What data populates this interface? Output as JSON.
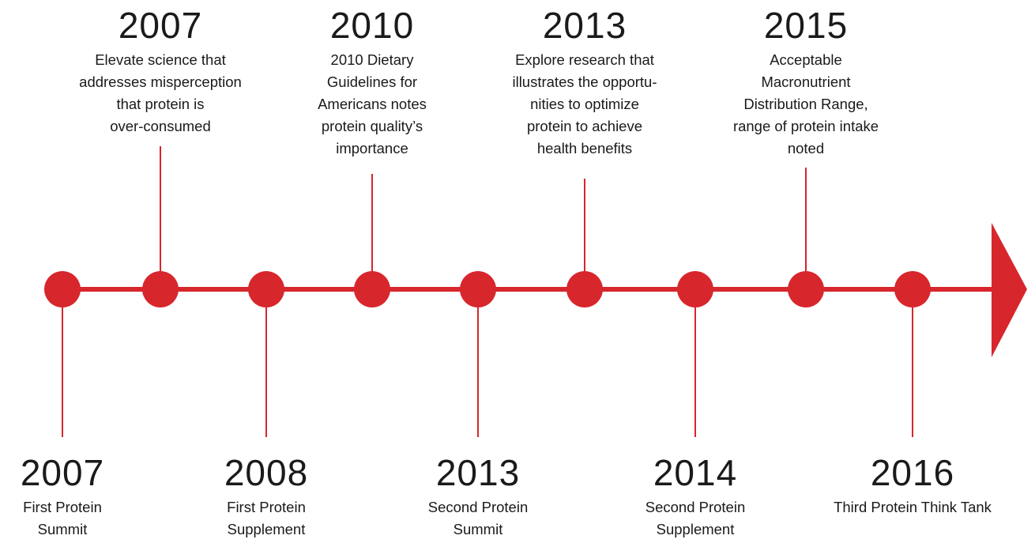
{
  "colors": {
    "accent": "#d7262c",
    "text": "#1a1a1a",
    "background": "#ffffff"
  },
  "top_events": [
    {
      "year": "2007",
      "text": "Elevate science that\naddresses misperception\nthat protein is\nover-consumed"
    },
    {
      "year": "2010",
      "text": "2010 Dietary\nGuidelines for\nAmericans notes\nprotein quality’s\nimportance"
    },
    {
      "year": "2013",
      "text": "Explore research that\nillustrates the opportu-\nnities to optimize\nprotein to achieve\nhealth benefits"
    },
    {
      "year": "2015",
      "text": "Acceptable\nMacronutrient\nDistribution Range,\nrange of protein intake\nnoted"
    }
  ],
  "bottom_events": [
    {
      "year": "2007",
      "text": "First Protein\nSummit"
    },
    {
      "year": "2008",
      "text": "First Protein\nSupplement"
    },
    {
      "year": "2013",
      "text": "Second Protein\nSummit"
    },
    {
      "year": "2014",
      "text": "Second Protein\nSupplement"
    },
    {
      "year": "2016",
      "text": "Third Protein Think Tank"
    }
  ]
}
